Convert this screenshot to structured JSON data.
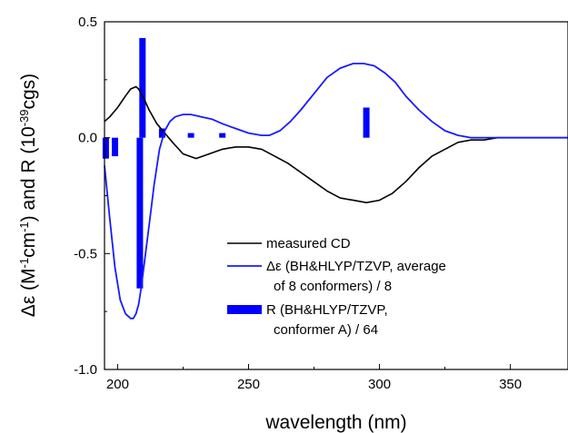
{
  "chart_data": {
    "type": "line",
    "xlabel": "wavelength (nm)",
    "ylabel_parts": {
      "p1": "Δε (M",
      "p2": "-1",
      "p3": "cm",
      "p4": "-1",
      "p5": ") and R (10",
      "p6": "-39",
      "p7": "cgs)"
    },
    "xlim": [
      195,
      372
    ],
    "ylim": [
      -1.0,
      0.5
    ],
    "x_ticks": [
      200,
      250,
      300,
      350
    ],
    "y_ticks": [
      -1.0,
      -0.5,
      0.0,
      0.5
    ],
    "x_tick_labels": [
      "200",
      "250",
      "300",
      "350"
    ],
    "y_tick_labels": [
      "-1.0",
      "-0.5",
      "0.0",
      "0.5"
    ],
    "grid": false,
    "legend_position": "bottom-center",
    "series": [
      {
        "name": "measured CD",
        "color": "#000000",
        "style": "line",
        "x": [
          195,
          197,
          200,
          203,
          205,
          207,
          208,
          210,
          212,
          215,
          218,
          221,
          225,
          230,
          235,
          240,
          245,
          250,
          255,
          260,
          265,
          270,
          275,
          280,
          285,
          290,
          295,
          300,
          305,
          310,
          315,
          320,
          325,
          330,
          335,
          340,
          345,
          350,
          355,
          360,
          365,
          372
        ],
        "y": [
          0.07,
          0.09,
          0.13,
          0.18,
          0.21,
          0.22,
          0.21,
          0.17,
          0.12,
          0.06,
          0.02,
          -0.02,
          -0.07,
          -0.09,
          -0.07,
          -0.05,
          -0.04,
          -0.04,
          -0.05,
          -0.08,
          -0.11,
          -0.15,
          -0.19,
          -0.23,
          -0.26,
          -0.27,
          -0.28,
          -0.27,
          -0.24,
          -0.19,
          -0.13,
          -0.08,
          -0.05,
          -0.02,
          -0.01,
          -0.01,
          0.0,
          0.0,
          0.0,
          0.0,
          0.0,
          0.0
        ]
      },
      {
        "name": "Δε (BH&HLYP/TZVP, average of 8 conformers) / 8",
        "color": "#1a1aff",
        "style": "line",
        "x": [
          195,
          197,
          199,
          201,
          203,
          205,
          206,
          207,
          208,
          209,
          210,
          212,
          214,
          216,
          218,
          220,
          222,
          225,
          228,
          232,
          236,
          240,
          245,
          250,
          255,
          258,
          262,
          266,
          270,
          275,
          280,
          285,
          290,
          294,
          298,
          302,
          306,
          310,
          315,
          320,
          325,
          330,
          335,
          340,
          345,
          350,
          355,
          360,
          372
        ],
        "y": [
          -0.12,
          -0.35,
          -0.56,
          -0.7,
          -0.76,
          -0.78,
          -0.78,
          -0.76,
          -0.72,
          -0.65,
          -0.56,
          -0.38,
          -0.2,
          -0.05,
          0.03,
          0.07,
          0.09,
          0.1,
          0.1,
          0.09,
          0.08,
          0.06,
          0.04,
          0.02,
          0.01,
          0.01,
          0.03,
          0.07,
          0.12,
          0.19,
          0.26,
          0.3,
          0.32,
          0.32,
          0.31,
          0.28,
          0.24,
          0.18,
          0.12,
          0.07,
          0.03,
          0.01,
          0.0,
          0.0,
          0.0,
          0.0,
          0.0,
          0.0,
          0.0
        ]
      },
      {
        "name": "R (BH&HLYP/TZVP, conformer A) / 64",
        "color": "#0000ff",
        "style": "bar",
        "x": [
          195.5,
          199,
          208.5,
          209.5,
          217,
          228,
          240,
          295
        ],
        "y": [
          -0.09,
          -0.08,
          -0.65,
          0.43,
          0.04,
          0.02,
          0.02,
          0.13
        ]
      }
    ],
    "legend": [
      {
        "symbol": "line",
        "color": "#000000",
        "lines": [
          "measured CD"
        ]
      },
      {
        "symbol": "line",
        "color": "#1a1aff",
        "lines": [
          "Δε (BH&HLYP/TZVP, average",
          "of 8 conformers) / 8"
        ]
      },
      {
        "symbol": "bar",
        "color": "#0000ff",
        "lines": [
          "R (BH&HLYP/TZVP,",
          "conformer A) / 64"
        ]
      }
    ]
  }
}
